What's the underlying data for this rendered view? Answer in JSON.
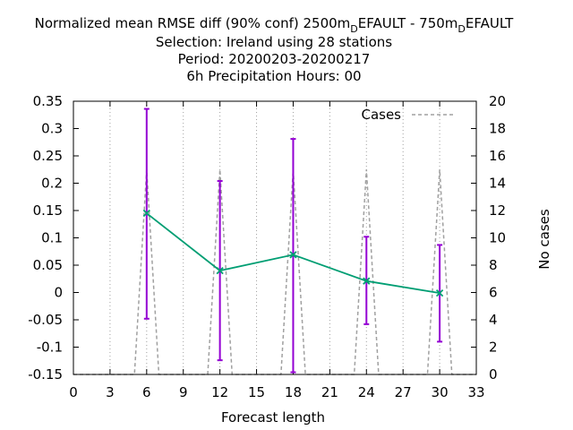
{
  "chart_data": {
    "type": "line",
    "title_lines": [
      "Selection: Ireland using    28 stations",
      "Period: 20200203-20200217",
      "6h Precipitation   Hours:  00"
    ],
    "title_parts": {
      "prefix": "Normalized mean RMSE diff (90% conf) 2500m",
      "sub1": "D",
      "middle": "EFAULT - 750m",
      "sub2": "D",
      "suffix": "EFAULT"
    },
    "xlabel": "Forecast length",
    "ylabel": "",
    "y2label": "No cases",
    "xlim": [
      0,
      33
    ],
    "ylim": [
      -0.15,
      0.35
    ],
    "y2lim": [
      0,
      20
    ],
    "xticks": [
      "0",
      "3",
      "6",
      "9",
      "12",
      "15",
      "18",
      "21",
      "24",
      "27",
      "30",
      "33"
    ],
    "yticks": [
      "-0.15",
      "-0.1",
      "-0.05",
      "0",
      "0.05",
      "0.1",
      "0.15",
      "0.2",
      "0.25",
      "0.3",
      "0.35"
    ],
    "y2ticks": [
      "0",
      "2",
      "4",
      "6",
      "8",
      "10",
      "12",
      "14",
      "16",
      "18",
      "20"
    ],
    "grid": true,
    "legend": {
      "position": "top-right",
      "entries": [
        "Cases"
      ]
    },
    "series": [
      {
        "x": [
          6,
          12,
          18,
          24,
          30
        ],
        "y": [
          0.145,
          0.04,
          0.069,
          0.021,
          -0.001
        ],
        "err_low": [
          -0.048,
          -0.124,
          -0.146,
          -0.058,
          -0.09
        ],
        "err_high": [
          0.336,
          0.204,
          0.281,
          0.102,
          0.087
        ],
        "color": "#009e73",
        "err_color": "#9400d3"
      },
      {
        "name": "Cases",
        "axis": "y2",
        "x": [
          0,
          5,
          6,
          7,
          11,
          12,
          13,
          17,
          18,
          19,
          23,
          24,
          25,
          29,
          30,
          31,
          33
        ],
        "y": [
          0,
          0,
          15,
          0,
          0,
          15,
          0,
          0,
          15,
          0,
          0,
          15,
          0,
          0,
          15,
          0,
          0
        ],
        "color": "#a0a0a0",
        "dash": true
      }
    ]
  }
}
